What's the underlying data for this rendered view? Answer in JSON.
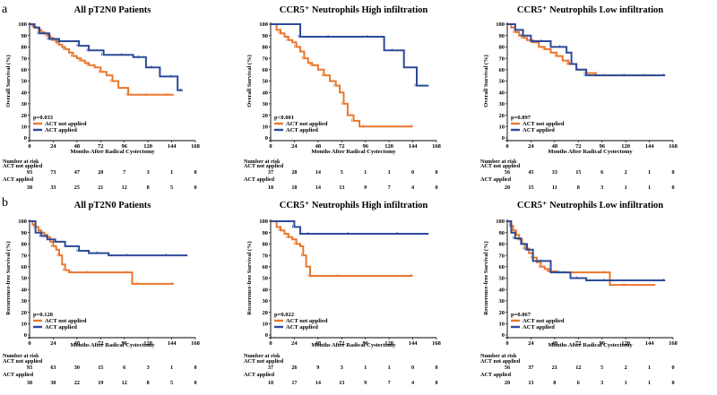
{
  "figure": {
    "row_labels": [
      "a",
      "b"
    ],
    "risk_header": "Number at risk",
    "risk_group_not_applied": "ACT not applied",
    "risk_group_applied": "ACT applied"
  },
  "colors": {
    "not_applied": "#E8772E",
    "applied": "#2C4A9A"
  },
  "chart_data": [
    {
      "type": "line",
      "title": "All pT2N0 Patients",
      "ylabel": "Overall Survival (%)",
      "xlabel": "Months After Radical Cystectomy",
      "x_ticks": [
        0,
        24,
        48,
        72,
        96,
        120,
        144,
        168
      ],
      "y_ticks": [
        0,
        10,
        20,
        30,
        40,
        50,
        60,
        70,
        80,
        90,
        100
      ],
      "xlim": [
        0,
        168
      ],
      "ylim": [
        0,
        100
      ],
      "p_value": "p=0.033",
      "legend": [
        "ACT not applied",
        "ACT applied"
      ],
      "series": [
        {
          "name": "ACT not applied",
          "x": [
            0,
            3,
            6,
            9,
            12,
            15,
            18,
            21,
            24,
            27,
            30,
            33,
            36,
            40,
            44,
            48,
            52,
            56,
            60,
            66,
            72,
            78,
            84,
            90,
            100,
            110,
            120,
            130,
            140,
            146
          ],
          "y": [
            100,
            98,
            97,
            95,
            93,
            92,
            90,
            88,
            86,
            84,
            82,
            80,
            78,
            75,
            72,
            70,
            68,
            66,
            64,
            62,
            58,
            55,
            50,
            44,
            38,
            38,
            38,
            38,
            38,
            38
          ]
        },
        {
          "name": "ACT applied",
          "x": [
            0,
            5,
            10,
            18,
            20,
            26,
            30,
            40,
            50,
            55,
            60,
            70,
            75,
            85,
            95,
            105,
            112,
            118,
            125,
            132,
            145,
            150,
            155
          ],
          "y": [
            100,
            97,
            92,
            92,
            87,
            87,
            85,
            85,
            81,
            81,
            77,
            77,
            73,
            73,
            73,
            71,
            71,
            62,
            62,
            54,
            54,
            42,
            42
          ]
        }
      ],
      "risk_table": {
        "not_applied": [
          "93",
          "73",
          "47",
          "20",
          "7",
          "3",
          "1",
          "0"
        ],
        "applied": [
          "38",
          "33",
          "25",
          "21",
          "12",
          "8",
          "5",
          "0"
        ]
      }
    },
    {
      "type": "line",
      "title": "CCR5⁺ Neutrophils High infiltration",
      "ylabel": "Overall Survival (%)",
      "xlabel": "Months After Radical Cystectomy",
      "x_ticks": [
        0,
        24,
        48,
        72,
        96,
        120,
        144,
        168
      ],
      "y_ticks": [
        0,
        10,
        20,
        30,
        40,
        50,
        60,
        70,
        80,
        90,
        100
      ],
      "xlim": [
        0,
        168
      ],
      "ylim": [
        0,
        100
      ],
      "p_value": "p<0.001",
      "legend": [
        "ACT not applied",
        "ACT applied"
      ],
      "series": [
        {
          "name": "ACT not applied",
          "x": [
            0,
            6,
            10,
            14,
            18,
            22,
            26,
            30,
            34,
            38,
            42,
            48,
            54,
            60,
            66,
            70,
            74,
            78,
            84,
            90,
            96,
            120,
            144
          ],
          "y": [
            100,
            95,
            92,
            89,
            86,
            84,
            80,
            76,
            70,
            66,
            64,
            60,
            55,
            50,
            46,
            40,
            30,
            20,
            15,
            10,
            10,
            10,
            10
          ]
        },
        {
          "name": "ACT applied",
          "x": [
            0,
            24,
            30,
            40,
            60,
            80,
            100,
            115,
            125,
            135,
            148,
            160
          ],
          "y": [
            100,
            100,
            89,
            89,
            89,
            89,
            89,
            77,
            77,
            62,
            46,
            46
          ]
        }
      ],
      "risk_table": {
        "not_applied": [
          "37",
          "28",
          "14",
          "5",
          "1",
          "1",
          "0",
          "0"
        ],
        "applied": [
          "18",
          "18",
          "14",
          "13",
          "9",
          "7",
          "4",
          "0"
        ]
      }
    },
    {
      "type": "line",
      "title": "CCR5⁺ Neutrophils Low infiltration",
      "ylabel": "Overall Survival (%)",
      "xlabel": "Months After Radical Cystectomy",
      "x_ticks": [
        0,
        24,
        48,
        72,
        96,
        120,
        144,
        168
      ],
      "y_ticks": [
        0,
        10,
        20,
        30,
        40,
        50,
        60,
        70,
        80,
        90,
        100
      ],
      "xlim": [
        0,
        168
      ],
      "ylim": [
        0,
        100
      ],
      "p_value": "p=0.897",
      "legend": [
        "ACT not applied",
        "ACT applied"
      ],
      "series": [
        {
          "name": "ACT not applied",
          "x": [
            0,
            4,
            8,
            12,
            16,
            20,
            26,
            32,
            38,
            44,
            50,
            56,
            62,
            70,
            80,
            90,
            100,
            120,
            140,
            150
          ],
          "y": [
            100,
            97,
            93,
            90,
            88,
            86,
            84,
            80,
            78,
            75,
            72,
            68,
            65,
            60,
            57,
            55,
            55,
            55,
            55,
            55
          ]
        },
        {
          "name": "ACT applied",
          "x": [
            0,
            8,
            16,
            24,
            36,
            44,
            55,
            60,
            65,
            70,
            80,
            100,
            120,
            140,
            160
          ],
          "y": [
            100,
            95,
            90,
            85,
            85,
            80,
            80,
            75,
            65,
            60,
            55,
            55,
            55,
            55,
            55
          ]
        }
      ],
      "risk_table": {
        "not_applied": [
          "56",
          "45",
          "33",
          "15",
          "6",
          "2",
          "1",
          "0"
        ],
        "applied": [
          "20",
          "15",
          "11",
          "8",
          "3",
          "1",
          "1",
          "0"
        ]
      }
    },
    {
      "type": "line",
      "title": "All pT2N0 Patients",
      "ylabel": "Recurrence-free Survival (%)",
      "xlabel": "Months After Radical Cystectomy",
      "x_ticks": [
        0,
        24,
        48,
        72,
        96,
        120,
        144,
        168
      ],
      "y_ticks": [
        0,
        10,
        20,
        30,
        40,
        50,
        60,
        70,
        80,
        90,
        100
      ],
      "xlim": [
        0,
        168
      ],
      "ylim": [
        0,
        100
      ],
      "p_value": "p=0.128",
      "legend": [
        "ACT not applied",
        "ACT applied"
      ],
      "series": [
        {
          "name": "ACT not applied",
          "x": [
            0,
            3,
            6,
            9,
            12,
            15,
            18,
            21,
            24,
            27,
            30,
            33,
            36,
            40,
            44,
            50,
            60,
            80,
            100,
            104,
            110,
            130,
            146
          ],
          "y": [
            100,
            97,
            95,
            92,
            90,
            88,
            86,
            82,
            78,
            75,
            70,
            62,
            57,
            55,
            55,
            55,
            55,
            55,
            55,
            45,
            45,
            45,
            45
          ]
        },
        {
          "name": "ACT applied",
          "x": [
            0,
            6,
            12,
            18,
            26,
            36,
            50,
            60,
            70,
            80,
            100,
            120,
            140,
            160
          ],
          "y": [
            100,
            90,
            87,
            84,
            82,
            78,
            74,
            72,
            72,
            70,
            70,
            70,
            70,
            70
          ]
        }
      ],
      "risk_table": {
        "not_applied": [
          "93",
          "63",
          "30",
          "15",
          "6",
          "3",
          "1",
          "0"
        ],
        "applied": [
          "38",
          "30",
          "22",
          "19",
          "12",
          "8",
          "5",
          "0"
        ]
      }
    },
    {
      "type": "line",
      "title": "CCR5⁺ Neutrophils High infiltration",
      "ylabel": "Recurrence-free Survival (%)",
      "xlabel": "Months After Radical Cystectomy",
      "x_ticks": [
        0,
        24,
        48,
        72,
        96,
        120,
        144,
        168
      ],
      "y_ticks": [
        0,
        10,
        20,
        30,
        40,
        50,
        60,
        70,
        80,
        90,
        100
      ],
      "xlim": [
        0,
        168
      ],
      "ylim": [
        0,
        100
      ],
      "p_value": "p=0.022",
      "legend": [
        "ACT not applied",
        "ACT applied"
      ],
      "series": [
        {
          "name": "ACT not applied",
          "x": [
            0,
            6,
            10,
            14,
            18,
            22,
            26,
            30,
            33,
            36,
            40,
            50,
            70,
            100,
            144
          ],
          "y": [
            100,
            95,
            92,
            89,
            86,
            84,
            80,
            78,
            70,
            60,
            52,
            52,
            52,
            52,
            52
          ]
        },
        {
          "name": "ACT applied",
          "x": [
            0,
            20,
            24,
            30,
            40,
            60,
            80,
            100,
            130,
            160
          ],
          "y": [
            100,
            100,
            95,
            89,
            89,
            89,
            89,
            89,
            89,
            89
          ]
        }
      ],
      "risk_table": {
        "not_applied": [
          "37",
          "26",
          "9",
          "3",
          "1",
          "1",
          "0",
          "0"
        ],
        "applied": [
          "18",
          "17",
          "14",
          "13",
          "9",
          "7",
          "4",
          "0"
        ]
      }
    },
    {
      "type": "line",
      "title": "CCR5⁺ Neutrophils Low infiltration",
      "ylabel": "Recurrence-free Survival (%)",
      "xlabel": "Months After Radical Cystectomy",
      "x_ticks": [
        0,
        24,
        48,
        72,
        96,
        120,
        144,
        168
      ],
      "y_ticks": [
        0,
        10,
        20,
        30,
        40,
        50,
        60,
        70,
        80,
        90,
        100
      ],
      "xlim": [
        0,
        168
      ],
      "ylim": [
        0,
        100
      ],
      "p_value": "p=0.867",
      "legend": [
        "ACT not applied",
        "ACT applied"
      ],
      "series": [
        {
          "name": "ACT not applied",
          "x": [
            0,
            3,
            6,
            9,
            12,
            15,
            18,
            22,
            26,
            30,
            34,
            38,
            42,
            50,
            60,
            80,
            100,
            104,
            120,
            150
          ],
          "y": [
            100,
            96,
            92,
            88,
            84,
            80,
            76,
            72,
            68,
            64,
            60,
            58,
            56,
            55,
            55,
            55,
            55,
            44,
            44,
            44
          ]
        },
        {
          "name": "ACT applied",
          "x": [
            0,
            4,
            8,
            14,
            20,
            26,
            36,
            44,
            54,
            64,
            72,
            80,
            100,
            130,
            160
          ],
          "y": [
            100,
            90,
            85,
            80,
            75,
            65,
            65,
            55,
            55,
            50,
            50,
            48,
            48,
            48,
            48
          ]
        }
      ],
      "risk_table": {
        "not_applied": [
          "56",
          "37",
          "21",
          "12",
          "5",
          "2",
          "1",
          "0"
        ],
        "applied": [
          "20",
          "13",
          "8",
          "6",
          "3",
          "1",
          "1",
          "0"
        ]
      }
    }
  ]
}
